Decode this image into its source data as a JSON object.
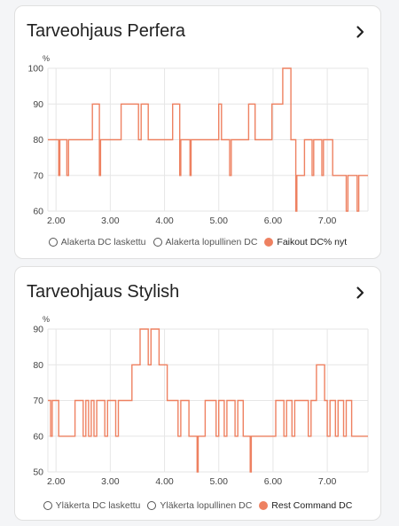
{
  "colors": {
    "series": "#ee8161",
    "grid": "#e6e6e6",
    "text": "#212121",
    "muted": "#666666"
  },
  "cards": [
    {
      "title": "Tarveohjaus Perfera",
      "chevron_icon": "chevron-right-icon",
      "chart_data": {
        "type": "line",
        "ylabel": "%",
        "xlim": [
          1.85,
          7.75
        ],
        "ylim": [
          60,
          100
        ],
        "x_ticks": [
          2,
          3,
          4,
          5,
          6,
          7
        ],
        "x_tick_labels": [
          "2.00",
          "3.00",
          "4.00",
          "5.00",
          "6.00",
          "7.00"
        ],
        "y_ticks": [
          60,
          70,
          80,
          90,
          100
        ],
        "legend": [
          {
            "label": "Alakerta DC laskettu",
            "active": false
          },
          {
            "label": "Alakerta lopullinen DC",
            "active": false
          },
          {
            "label": "Faikout DC% nyt",
            "active": true
          }
        ],
        "series": [
          {
            "name": "Faikout DC% nyt",
            "step": true,
            "points": [
              [
                1.85,
                80
              ],
              [
                2.05,
                80
              ],
              [
                2.05,
                70
              ],
              [
                2.07,
                70
              ],
              [
                2.07,
                80
              ],
              [
                2.2,
                80
              ],
              [
                2.2,
                70
              ],
              [
                2.23,
                70
              ],
              [
                2.23,
                80
              ],
              [
                2.67,
                80
              ],
              [
                2.67,
                90
              ],
              [
                2.8,
                90
              ],
              [
                2.8,
                70
              ],
              [
                2.82,
                70
              ],
              [
                2.82,
                80
              ],
              [
                3.2,
                80
              ],
              [
                3.2,
                90
              ],
              [
                3.52,
                90
              ],
              [
                3.52,
                80
              ],
              [
                3.57,
                80
              ],
              [
                3.57,
                90
              ],
              [
                3.7,
                90
              ],
              [
                3.7,
                80
              ],
              [
                4.15,
                80
              ],
              [
                4.15,
                90
              ],
              [
                4.28,
                90
              ],
              [
                4.28,
                70
              ],
              [
                4.3,
                70
              ],
              [
                4.3,
                80
              ],
              [
                4.47,
                80
              ],
              [
                4.47,
                70
              ],
              [
                4.49,
                70
              ],
              [
                4.49,
                80
              ],
              [
                5.0,
                80
              ],
              [
                5.0,
                90
              ],
              [
                5.05,
                90
              ],
              [
                5.05,
                80
              ],
              [
                5.2,
                80
              ],
              [
                5.2,
                70
              ],
              [
                5.23,
                70
              ],
              [
                5.23,
                80
              ],
              [
                5.55,
                80
              ],
              [
                5.55,
                90
              ],
              [
                5.67,
                90
              ],
              [
                5.67,
                80
              ],
              [
                5.98,
                80
              ],
              [
                5.98,
                90
              ],
              [
                6.18,
                90
              ],
              [
                6.18,
                100
              ],
              [
                6.33,
                100
              ],
              [
                6.33,
                80
              ],
              [
                6.42,
                80
              ],
              [
                6.42,
                60
              ],
              [
                6.44,
                60
              ],
              [
                6.44,
                70
              ],
              [
                6.58,
                70
              ],
              [
                6.58,
                80
              ],
              [
                6.72,
                80
              ],
              [
                6.72,
                70
              ],
              [
                6.75,
                70
              ],
              [
                6.75,
                80
              ],
              [
                6.9,
                80
              ],
              [
                6.9,
                70
              ],
              [
                6.93,
                70
              ],
              [
                6.93,
                80
              ],
              [
                7.1,
                80
              ],
              [
                7.1,
                70
              ],
              [
                7.35,
                70
              ],
              [
                7.35,
                60
              ],
              [
                7.38,
                60
              ],
              [
                7.38,
                70
              ],
              [
                7.55,
                70
              ],
              [
                7.55,
                60
              ],
              [
                7.58,
                60
              ],
              [
                7.58,
                70
              ],
              [
                7.75,
                70
              ]
            ]
          }
        ]
      }
    },
    {
      "title": "Tarveohjaus Stylish",
      "chevron_icon": "chevron-right-icon",
      "chart_data": {
        "type": "line",
        "ylabel": "%",
        "xlim": [
          1.85,
          7.75
        ],
        "ylim": [
          50,
          90
        ],
        "x_ticks": [
          2,
          3,
          4,
          5,
          6,
          7
        ],
        "x_tick_labels": [
          "2.00",
          "3.00",
          "4.00",
          "5.00",
          "6.00",
          "7.00"
        ],
        "y_ticks": [
          50,
          60,
          70,
          80,
          90
        ],
        "legend": [
          {
            "label": "Yläkerta DC laskettu",
            "active": false
          },
          {
            "label": "Yläkerta lopullinen DC",
            "active": false
          },
          {
            "label": "Rest Command DC",
            "active": true
          }
        ],
        "series": [
          {
            "name": "Rest Command DC",
            "step": true,
            "points": [
              [
                1.85,
                70
              ],
              [
                1.9,
                70
              ],
              [
                1.9,
                60
              ],
              [
                1.93,
                60
              ],
              [
                1.93,
                70
              ],
              [
                2.05,
                70
              ],
              [
                2.05,
                60
              ],
              [
                2.35,
                60
              ],
              [
                2.35,
                70
              ],
              [
                2.5,
                70
              ],
              [
                2.5,
                60
              ],
              [
                2.55,
                60
              ],
              [
                2.55,
                70
              ],
              [
                2.6,
                70
              ],
              [
                2.6,
                60
              ],
              [
                2.65,
                60
              ],
              [
                2.65,
                70
              ],
              [
                2.7,
                70
              ],
              [
                2.7,
                60
              ],
              [
                2.75,
                60
              ],
              [
                2.75,
                70
              ],
              [
                2.9,
                70
              ],
              [
                2.9,
                60
              ],
              [
                2.95,
                60
              ],
              [
                2.95,
                70
              ],
              [
                3.1,
                70
              ],
              [
                3.1,
                60
              ],
              [
                3.15,
                60
              ],
              [
                3.15,
                70
              ],
              [
                3.4,
                70
              ],
              [
                3.4,
                80
              ],
              [
                3.55,
                80
              ],
              [
                3.55,
                90
              ],
              [
                3.7,
                90
              ],
              [
                3.7,
                80
              ],
              [
                3.75,
                80
              ],
              [
                3.75,
                90
              ],
              [
                3.9,
                90
              ],
              [
                3.9,
                80
              ],
              [
                4.05,
                80
              ],
              [
                4.05,
                70
              ],
              [
                4.25,
                70
              ],
              [
                4.25,
                60
              ],
              [
                4.3,
                60
              ],
              [
                4.3,
                70
              ],
              [
                4.45,
                70
              ],
              [
                4.45,
                60
              ],
              [
                4.6,
                60
              ],
              [
                4.6,
                50
              ],
              [
                4.62,
                50
              ],
              [
                4.62,
                60
              ],
              [
                4.75,
                60
              ],
              [
                4.75,
                70
              ],
              [
                4.95,
                70
              ],
              [
                4.95,
                60
              ],
              [
                5.0,
                60
              ],
              [
                5.0,
                70
              ],
              [
                5.1,
                70
              ],
              [
                5.1,
                60
              ],
              [
                5.15,
                60
              ],
              [
                5.15,
                70
              ],
              [
                5.3,
                70
              ],
              [
                5.3,
                60
              ],
              [
                5.35,
                60
              ],
              [
                5.35,
                70
              ],
              [
                5.45,
                70
              ],
              [
                5.45,
                60
              ],
              [
                5.58,
                60
              ],
              [
                5.58,
                50
              ],
              [
                5.6,
                50
              ],
              [
                5.6,
                60
              ],
              [
                6.05,
                60
              ],
              [
                6.05,
                70
              ],
              [
                6.2,
                70
              ],
              [
                6.2,
                60
              ],
              [
                6.25,
                60
              ],
              [
                6.25,
                70
              ],
              [
                6.35,
                70
              ],
              [
                6.35,
                60
              ],
              [
                6.4,
                60
              ],
              [
                6.4,
                70
              ],
              [
                6.65,
                70
              ],
              [
                6.65,
                60
              ],
              [
                6.7,
                60
              ],
              [
                6.7,
                70
              ],
              [
                6.8,
                70
              ],
              [
                6.8,
                80
              ],
              [
                6.95,
                80
              ],
              [
                6.95,
                70
              ],
              [
                7.0,
                70
              ],
              [
                7.0,
                60
              ],
              [
                7.05,
                60
              ],
              [
                7.05,
                70
              ],
              [
                7.15,
                70
              ],
              [
                7.15,
                60
              ],
              [
                7.2,
                60
              ],
              [
                7.2,
                70
              ],
              [
                7.3,
                70
              ],
              [
                7.3,
                60
              ],
              [
                7.35,
                60
              ],
              [
                7.35,
                70
              ],
              [
                7.45,
                70
              ],
              [
                7.45,
                60
              ],
              [
                7.75,
                60
              ]
            ]
          }
        ]
      }
    }
  ]
}
